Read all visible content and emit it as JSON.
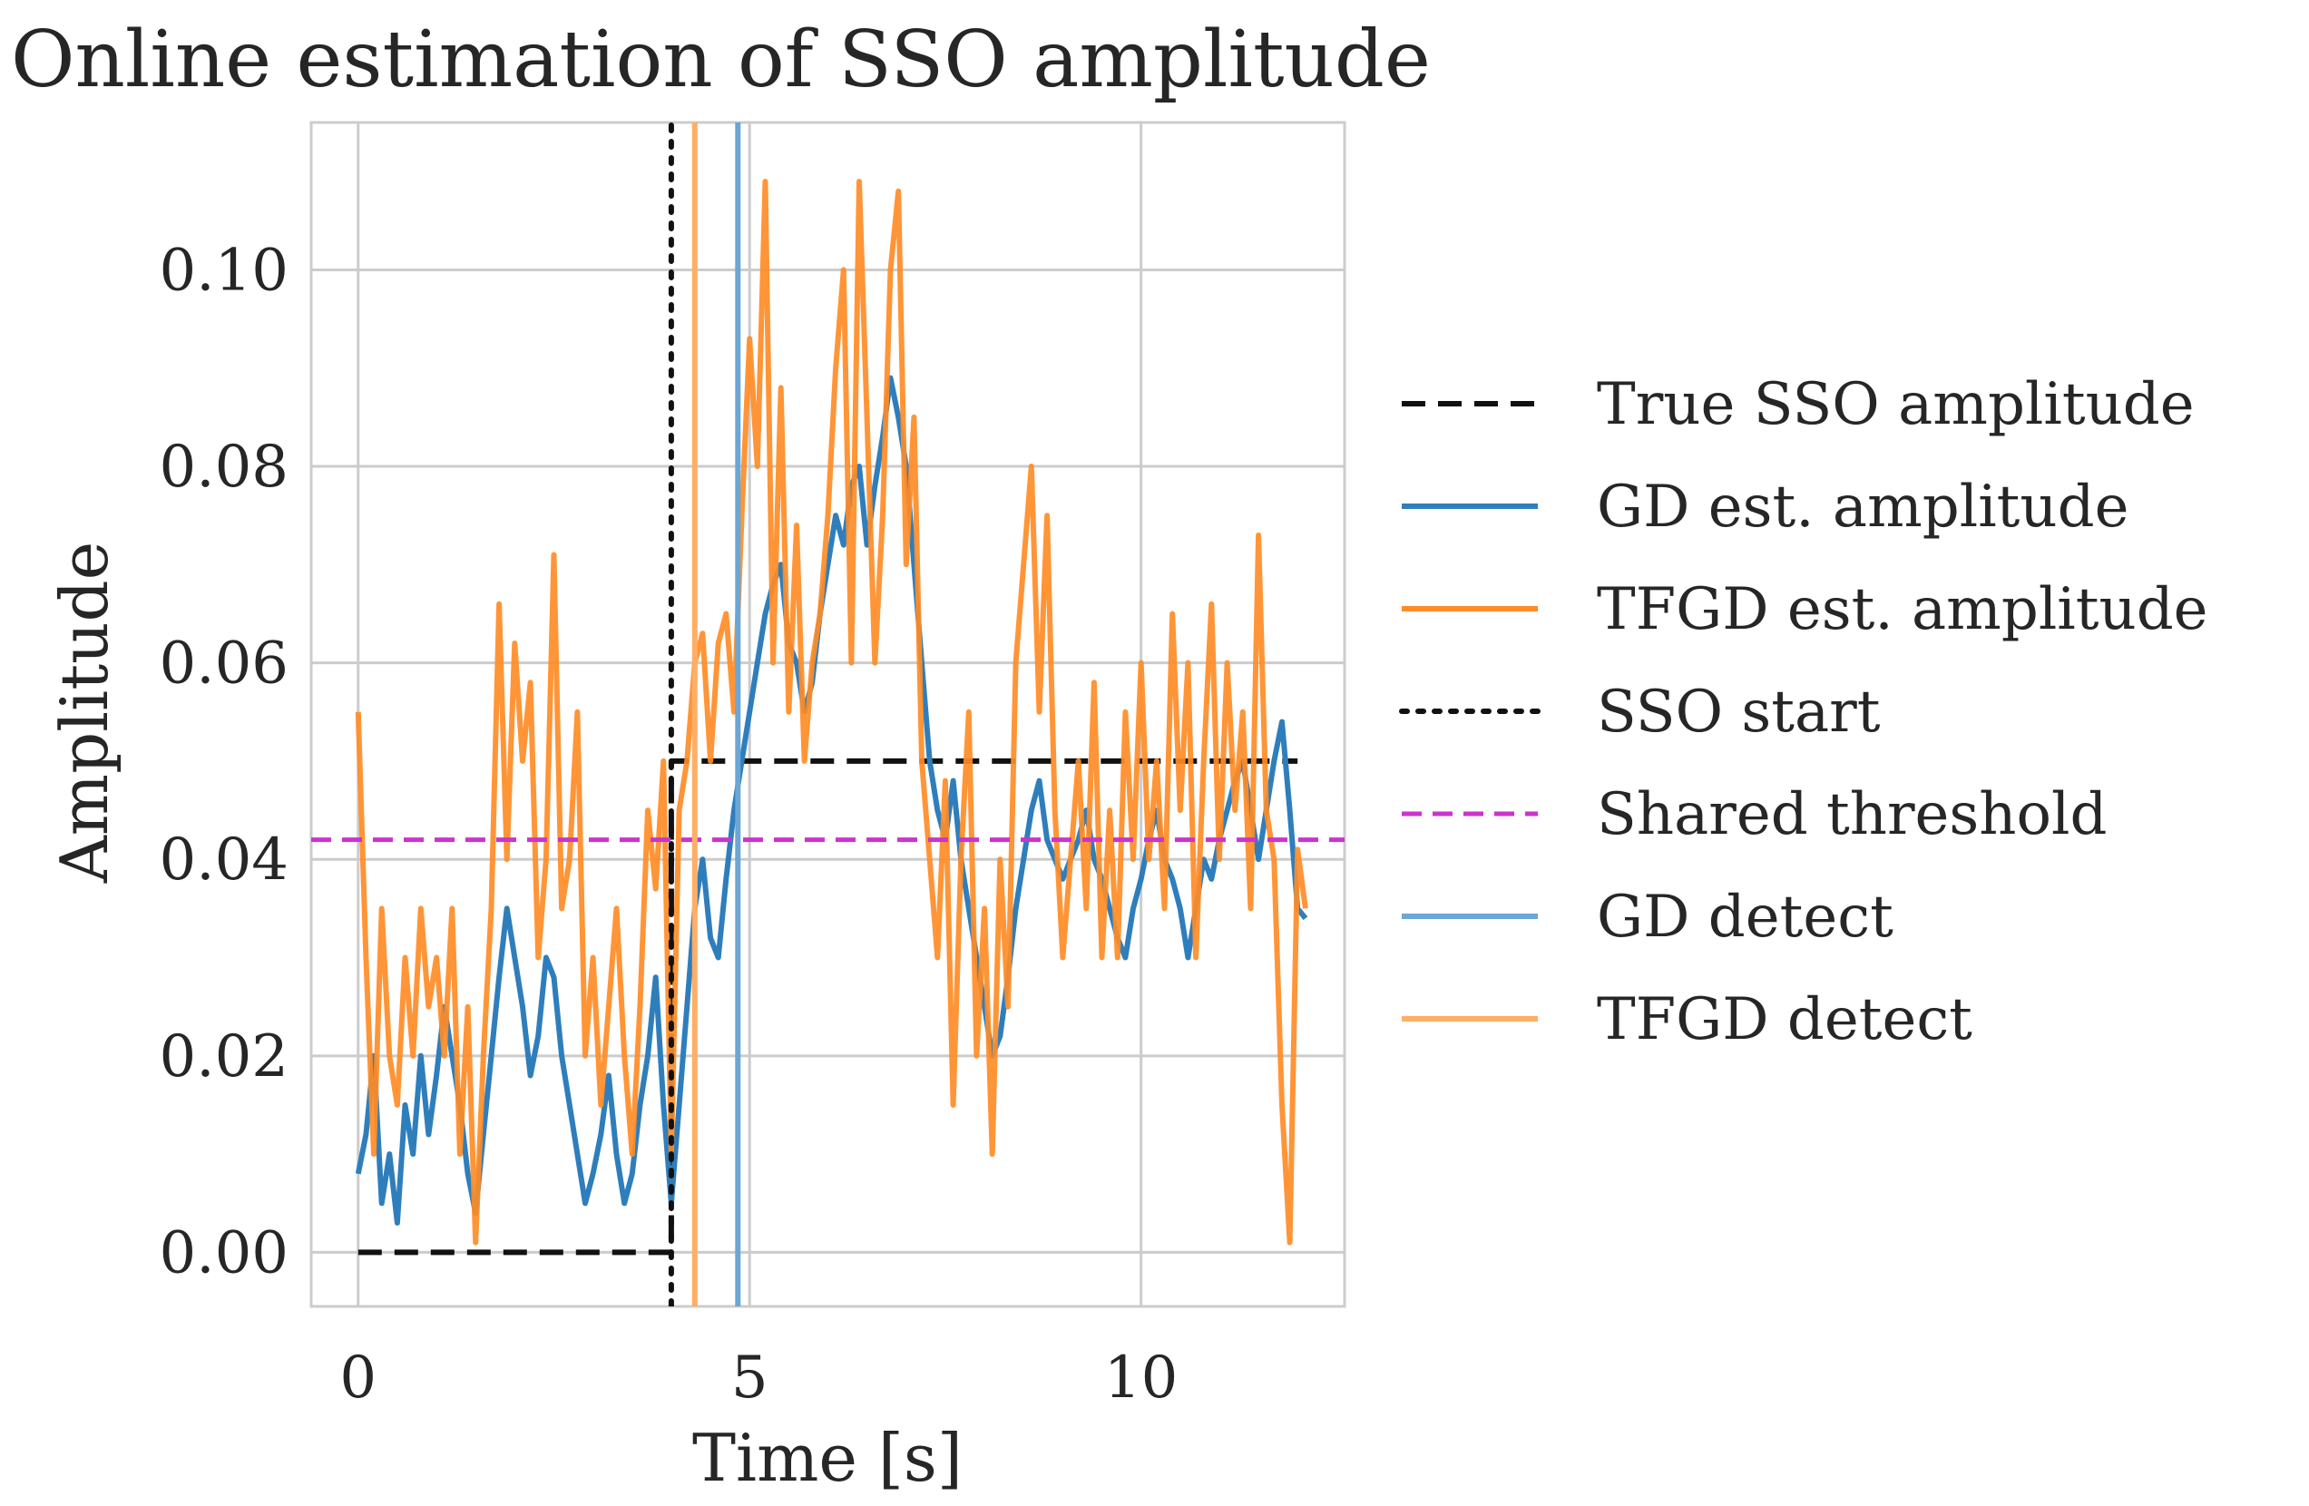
{
  "chart_data": {
    "type": "line",
    "title": "Online estimation of SSO amplitude",
    "xlabel": "Time [s]",
    "ylabel": "Amplitude",
    "xlim": [
      -0.6,
      12.6
    ],
    "ylim": [
      -0.0055,
      0.115
    ],
    "xticks": [
      0,
      5,
      10
    ],
    "xtick_labels": [
      "0",
      "5",
      "10"
    ],
    "yticks": [
      0.0,
      0.02,
      0.04,
      0.06,
      0.08,
      0.1
    ],
    "ytick_labels": [
      "0.00",
      "0.02",
      "0.04",
      "0.06",
      "0.08",
      "0.10"
    ],
    "grid": true,
    "legend_position": "outside-right",
    "colors": {
      "true": "#111111",
      "gd": "#2f7ebc",
      "tfgd": "#ff8c26",
      "threshold": "#cc33cc",
      "gd_detect": "#6aa6d6",
      "tfgd_detect": "#ffae66"
    },
    "series": [
      {
        "name": "True SSO amplitude",
        "style": "dashed",
        "x": [
          0,
          4.0,
          4.0,
          12.0
        ],
        "y": [
          0.0,
          0.0,
          0.05,
          0.05
        ]
      },
      {
        "name": "GD est. amplitude",
        "style": "solid",
        "x": [
          0.0,
          0.1,
          0.2,
          0.3,
          0.4,
          0.5,
          0.6,
          0.7,
          0.8,
          0.9,
          1.0,
          1.1,
          1.2,
          1.3,
          1.4,
          1.5,
          1.6,
          1.7,
          1.8,
          1.9,
          2.0,
          2.1,
          2.2,
          2.3,
          2.4,
          2.5,
          2.6,
          2.7,
          2.8,
          2.9,
          3.0,
          3.1,
          3.2,
          3.3,
          3.4,
          3.5,
          3.6,
          3.7,
          3.8,
          3.9,
          4.0,
          4.1,
          4.2,
          4.3,
          4.4,
          4.5,
          4.6,
          4.7,
          4.8,
          4.9,
          5.0,
          5.1,
          5.2,
          5.3,
          5.4,
          5.5,
          5.6,
          5.7,
          5.8,
          5.9,
          6.0,
          6.1,
          6.2,
          6.3,
          6.4,
          6.5,
          6.6,
          6.7,
          6.8,
          6.9,
          7.0,
          7.1,
          7.2,
          7.3,
          7.4,
          7.5,
          7.6,
          7.7,
          7.8,
          7.9,
          8.0,
          8.1,
          8.2,
          8.3,
          8.4,
          8.5,
          8.6,
          8.7,
          8.8,
          8.9,
          9.0,
          9.1,
          9.2,
          9.3,
          9.4,
          9.5,
          9.6,
          9.7,
          9.8,
          9.9,
          10.0,
          10.1,
          10.2,
          10.3,
          10.4,
          10.5,
          10.6,
          10.7,
          10.8,
          10.9,
          11.0,
          11.1,
          11.2,
          11.3,
          11.4,
          11.5,
          11.6,
          11.7,
          11.8,
          11.9,
          12.0,
          12.1
        ],
        "y": [
          0.008,
          0.012,
          0.02,
          0.005,
          0.01,
          0.003,
          0.015,
          0.01,
          0.02,
          0.012,
          0.018,
          0.025,
          0.02,
          0.015,
          0.008,
          0.004,
          0.012,
          0.02,
          0.028,
          0.035,
          0.03,
          0.025,
          0.018,
          0.022,
          0.03,
          0.028,
          0.02,
          0.015,
          0.01,
          0.005,
          0.008,
          0.012,
          0.018,
          0.01,
          0.005,
          0.008,
          0.015,
          0.02,
          0.028,
          0.015,
          0.005,
          0.015,
          0.025,
          0.035,
          0.04,
          0.032,
          0.03,
          0.038,
          0.045,
          0.05,
          0.055,
          0.06,
          0.065,
          0.068,
          0.07,
          0.062,
          0.06,
          0.055,
          0.058,
          0.065,
          0.07,
          0.075,
          0.072,
          0.078,
          0.08,
          0.072,
          0.078,
          0.083,
          0.089,
          0.085,
          0.08,
          0.07,
          0.06,
          0.05,
          0.045,
          0.042,
          0.048,
          0.04,
          0.035,
          0.03,
          0.025,
          0.02,
          0.022,
          0.028,
          0.035,
          0.04,
          0.045,
          0.048,
          0.042,
          0.04,
          0.038,
          0.04,
          0.042,
          0.045,
          0.04,
          0.038,
          0.035,
          0.032,
          0.03,
          0.035,
          0.038,
          0.042,
          0.045,
          0.04,
          0.038,
          0.035,
          0.03,
          0.035,
          0.04,
          0.038,
          0.042,
          0.045,
          0.048,
          0.05,
          0.045,
          0.04,
          0.045,
          0.05,
          0.054,
          0.045,
          0.035,
          0.034
        ]
      },
      {
        "name": "TFGD est. amplitude",
        "style": "solid",
        "x": [
          0.0,
          0.1,
          0.2,
          0.3,
          0.4,
          0.5,
          0.6,
          0.7,
          0.8,
          0.9,
          1.0,
          1.1,
          1.2,
          1.3,
          1.4,
          1.5,
          1.6,
          1.7,
          1.8,
          1.9,
          2.0,
          2.1,
          2.2,
          2.3,
          2.4,
          2.5,
          2.6,
          2.7,
          2.8,
          2.9,
          3.0,
          3.1,
          3.2,
          3.3,
          3.4,
          3.5,
          3.6,
          3.7,
          3.8,
          3.9,
          4.0,
          4.1,
          4.2,
          4.3,
          4.4,
          4.5,
          4.6,
          4.7,
          4.8,
          4.9,
          5.0,
          5.1,
          5.2,
          5.3,
          5.4,
          5.5,
          5.6,
          5.7,
          5.8,
          5.9,
          6.0,
          6.1,
          6.2,
          6.3,
          6.4,
          6.5,
          6.6,
          6.7,
          6.8,
          6.9,
          7.0,
          7.1,
          7.2,
          7.3,
          7.4,
          7.5,
          7.6,
          7.7,
          7.8,
          7.9,
          8.0,
          8.1,
          8.2,
          8.3,
          8.4,
          8.5,
          8.6,
          8.7,
          8.8,
          8.9,
          9.0,
          9.1,
          9.2,
          9.3,
          9.4,
          9.5,
          9.6,
          9.7,
          9.8,
          9.9,
          10.0,
          10.1,
          10.2,
          10.3,
          10.4,
          10.5,
          10.6,
          10.7,
          10.8,
          10.9,
          11.0,
          11.1,
          11.2,
          11.3,
          11.4,
          11.5,
          11.6,
          11.7,
          11.8,
          11.9,
          12.0,
          12.1
        ],
        "y": [
          0.055,
          0.03,
          0.01,
          0.035,
          0.02,
          0.015,
          0.03,
          0.02,
          0.035,
          0.025,
          0.03,
          0.02,
          0.035,
          0.01,
          0.025,
          0.001,
          0.02,
          0.035,
          0.066,
          0.04,
          0.062,
          0.05,
          0.058,
          0.03,
          0.04,
          0.071,
          0.035,
          0.04,
          0.055,
          0.02,
          0.03,
          0.015,
          0.025,
          0.035,
          0.02,
          0.01,
          0.025,
          0.045,
          0.037,
          0.05,
          0.01,
          0.045,
          0.05,
          0.06,
          0.063,
          0.05,
          0.062,
          0.065,
          0.055,
          0.075,
          0.093,
          0.08,
          0.109,
          0.06,
          0.088,
          0.055,
          0.074,
          0.05,
          0.06,
          0.065,
          0.075,
          0.09,
          0.1,
          0.06,
          0.109,
          0.085,
          0.06,
          0.075,
          0.1,
          0.108,
          0.07,
          0.085,
          0.05,
          0.04,
          0.03,
          0.048,
          0.015,
          0.04,
          0.055,
          0.02,
          0.035,
          0.01,
          0.04,
          0.025,
          0.06,
          0.07,
          0.08,
          0.055,
          0.075,
          0.045,
          0.03,
          0.04,
          0.05,
          0.035,
          0.058,
          0.03,
          0.045,
          0.03,
          0.055,
          0.04,
          0.06,
          0.04,
          0.05,
          0.035,
          0.065,
          0.045,
          0.06,
          0.03,
          0.05,
          0.066,
          0.04,
          0.06,
          0.045,
          0.055,
          0.035,
          0.073,
          0.045,
          0.04,
          0.015,
          0.001,
          0.041,
          0.035
        ]
      },
      {
        "name": "SSO start",
        "style": "dotted",
        "x": [
          4.0,
          4.0
        ],
        "y": [
          -0.0055,
          0.115
        ]
      },
      {
        "name": "Shared threshold",
        "style": "dashed",
        "x": [
          -0.6,
          12.6
        ],
        "y": [
          0.042,
          0.042
        ]
      },
      {
        "name": "GD detect",
        "style": "solid",
        "x": [
          4.85,
          4.85
        ],
        "y": [
          -0.0055,
          0.115
        ]
      },
      {
        "name": "TFGD detect",
        "style": "solid",
        "x": [
          4.3,
          4.3
        ],
        "y": [
          -0.0055,
          0.115
        ]
      }
    ]
  }
}
